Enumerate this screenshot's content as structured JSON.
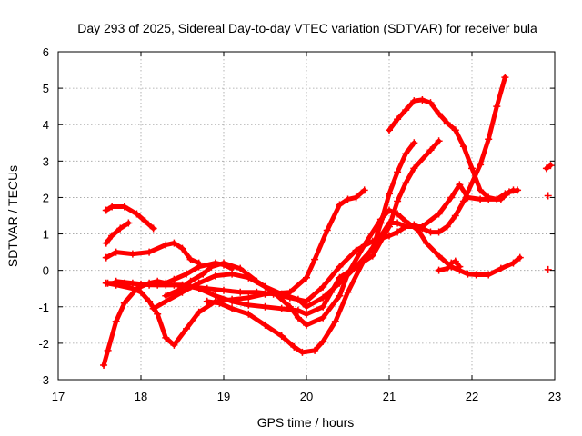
{
  "chart_data": {
    "type": "scatter",
    "title": "Day 293 of 2025, Sidereal Day-to-day VTEC variation (SDTVAR) for receiver bula",
    "xlabel": "GPS time / hours",
    "ylabel": "SDTVAR / TECUs",
    "xlim": [
      17,
      23
    ],
    "ylim": [
      -3,
      6
    ],
    "xticks": [
      "17",
      "18",
      "19",
      "20",
      "21",
      "22",
      "23"
    ],
    "yticks": [
      "-3",
      "-2",
      "-1",
      "0",
      "1",
      "2",
      "3",
      "4",
      "5",
      "6"
    ],
    "grid": true,
    "marker": "+",
    "color": "#ff0000",
    "series": [
      {
        "name": "track-a",
        "x": [
          17.58,
          17.65,
          17.8,
          17.95,
          18.05,
          18.15
        ],
        "y": [
          1.65,
          1.75,
          1.75,
          1.55,
          1.35,
          1.15
        ]
      },
      {
        "name": "track-b",
        "x": [
          17.58,
          17.65,
          17.75,
          17.85
        ],
        "y": [
          0.75,
          0.95,
          1.15,
          1.3
        ]
      },
      {
        "name": "track-c",
        "x": [
          17.58,
          17.7,
          17.9,
          18.1,
          18.3,
          18.4,
          18.5,
          18.6,
          18.7
        ],
        "y": [
          0.35,
          0.5,
          0.45,
          0.5,
          0.7,
          0.75,
          0.6,
          0.3,
          0.2
        ]
      },
      {
        "name": "track-d",
        "x": [
          17.55,
          17.6,
          17.7,
          17.8,
          17.95,
          18.1,
          18.2,
          18.3,
          18.4,
          18.55,
          18.7,
          18.9,
          19.0,
          19.1
        ],
        "y": [
          -2.6,
          -2.2,
          -1.4,
          -0.9,
          -0.5,
          -0.35,
          -0.3,
          -0.35,
          -0.25,
          -0.1,
          0.1,
          0.2,
          0.15,
          0.05
        ]
      },
      {
        "name": "track-e",
        "x": [
          17.58,
          17.7,
          17.9,
          18.0,
          18.1,
          18.2,
          18.3,
          18.4,
          18.55,
          18.7,
          18.9,
          19.1,
          19.3,
          19.5,
          19.8,
          20.0,
          20.1,
          20.25,
          20.4,
          20.5,
          20.6,
          20.7
        ],
        "y": [
          -0.35,
          -0.4,
          -0.5,
          -0.6,
          -0.85,
          -1.2,
          -1.85,
          -2.05,
          -1.6,
          -1.15,
          -0.85,
          -0.8,
          -0.75,
          -0.65,
          -0.6,
          -0.2,
          0.3,
          1.1,
          1.8,
          1.95,
          2.0,
          2.2
        ]
      },
      {
        "name": "track-f",
        "x": [
          17.6,
          17.8,
          18.0,
          18.2,
          18.4,
          18.6,
          18.8,
          19.0,
          19.2,
          19.4,
          19.6,
          19.8,
          20.0,
          20.2,
          20.4,
          20.6,
          20.8,
          21.0,
          21.1,
          21.2,
          21.3,
          21.4,
          21.5,
          21.6,
          21.7,
          21.8,
          21.9,
          22.0,
          22.1,
          22.2,
          22.3,
          22.4
        ],
        "y": [
          -0.35,
          -0.35,
          -0.38,
          -0.4,
          -0.4,
          -0.45,
          -0.5,
          -0.55,
          -0.6,
          -0.6,
          -0.65,
          -0.75,
          -0.85,
          -0.45,
          0.1,
          0.55,
          0.8,
          0.95,
          1.05,
          1.2,
          1.25,
          1.15,
          1.05,
          1.05,
          1.2,
          1.5,
          1.9,
          2.4,
          2.9,
          3.6,
          4.5,
          5.3
        ]
      },
      {
        "name": "track-g",
        "x": [
          17.7,
          17.9,
          18.1,
          18.3,
          18.5,
          18.7,
          18.9,
          19.1,
          19.3,
          19.5,
          19.7,
          19.9,
          20.0,
          20.2,
          20.3,
          20.4,
          20.6,
          20.8,
          21.0,
          21.1,
          21.2,
          21.3,
          21.5,
          21.6
        ],
        "y": [
          -0.3,
          -0.35,
          -0.4,
          -0.4,
          -0.4,
          -0.5,
          -0.7,
          -0.85,
          -0.95,
          -1.0,
          -1.05,
          -1.1,
          -1.2,
          -1.0,
          -0.6,
          -0.2,
          0.1,
          0.4,
          1.2,
          1.9,
          2.4,
          2.8,
          3.3,
          3.55
        ]
      },
      {
        "name": "track-h",
        "x": [
          18.15,
          18.3,
          18.5,
          18.7,
          18.9,
          19.1,
          19.3,
          19.5,
          19.7,
          19.9,
          20.0,
          20.2,
          20.4,
          20.6,
          20.8,
          20.9,
          21.0,
          21.1,
          21.2,
          21.3
        ],
        "y": [
          -1.05,
          -0.85,
          -0.6,
          -0.35,
          -0.15,
          -0.1,
          -0.2,
          -0.45,
          -0.65,
          -0.8,
          -1.0,
          -0.75,
          -0.35,
          0.1,
          0.6,
          1.3,
          2.1,
          2.7,
          3.2,
          3.5
        ]
      },
      {
        "name": "track-i",
        "x": [
          18.3,
          18.45,
          18.6,
          18.75,
          18.85,
          19.0,
          19.2,
          19.4,
          19.6,
          19.8,
          19.9,
          20.0,
          20.2,
          20.4,
          20.5,
          20.7,
          20.9,
          21.0,
          21.1,
          21.2,
          21.35,
          21.45,
          21.6,
          21.75,
          21.85,
          21.95,
          22.05,
          22.2,
          22.35,
          22.5,
          22.58
        ],
        "y": [
          -0.7,
          -0.55,
          -0.3,
          -0.1,
          0.1,
          0.2,
          0.05,
          -0.3,
          -0.6,
          -1.0,
          -1.3,
          -1.5,
          -1.3,
          -0.7,
          -0.1,
          0.7,
          1.4,
          1.65,
          1.55,
          1.35,
          1.1,
          0.75,
          0.4,
          0.1,
          0.0,
          -0.1,
          -0.12,
          -0.12,
          0.05,
          0.2,
          0.35
        ]
      },
      {
        "name": "track-j",
        "x": [
          18.8,
          18.95,
          19.1,
          19.3,
          19.5,
          19.7,
          19.85,
          19.95,
          20.1,
          20.2,
          20.35,
          20.5,
          20.7,
          20.9,
          21.0,
          21.1,
          21.2,
          21.4,
          21.6,
          21.75,
          21.85,
          21.95,
          22.1,
          22.2,
          22.35,
          22.45,
          22.55
        ],
        "y": [
          -0.85,
          -0.9,
          -1.05,
          -1.2,
          -1.5,
          -1.8,
          -2.1,
          -2.25,
          -2.2,
          -1.95,
          -1.4,
          -0.6,
          0.3,
          0.95,
          1.3,
          1.3,
          1.2,
          1.2,
          1.55,
          2.0,
          2.35,
          2.0,
          1.95,
          1.95,
          1.95,
          2.15,
          2.2
        ]
      },
      {
        "name": "track-k",
        "x": [
          21.0,
          21.1,
          21.2,
          21.3,
          21.4,
          21.5,
          21.6,
          21.7,
          21.8,
          21.9,
          22.0,
          22.1,
          22.2,
          22.3,
          22.4,
          22.5
        ],
        "y": [
          3.85,
          4.15,
          4.4,
          4.65,
          4.68,
          4.6,
          4.3,
          4.05,
          3.85,
          3.4,
          2.8,
          2.2,
          2.0,
          1.95,
          2.1,
          2.2
        ]
      },
      {
        "name": "track-l",
        "x": [
          21.6,
          21.7,
          21.75,
          21.8,
          21.85
        ],
        "y": [
          0.0,
          0.05,
          0.2,
          0.25,
          0.1
        ]
      },
      {
        "name": "track-m",
        "x": [
          22.9,
          22.95
        ],
        "y": [
          2.8,
          2.88
        ]
      },
      {
        "name": "track-n",
        "x": [
          22.92
        ],
        "y": [
          2.05
        ]
      },
      {
        "name": "track-o",
        "x": [
          22.92
        ],
        "y": [
          0.02
        ]
      }
    ]
  }
}
